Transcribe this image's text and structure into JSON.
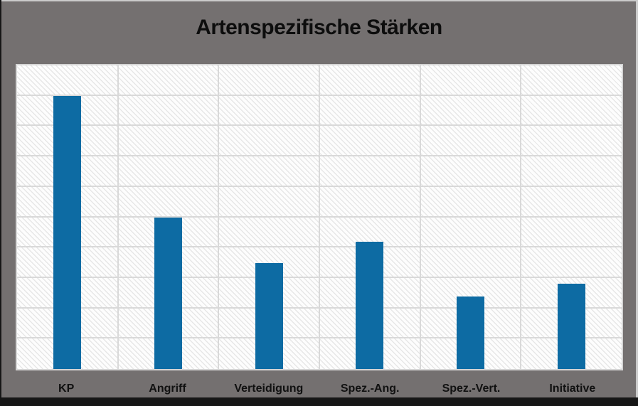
{
  "title": "Artenspezifische Stärken",
  "chart_data": {
    "type": "bar",
    "title": "Artenspezifische Stärken",
    "categories": [
      "KP",
      "Angriff",
      "Verteidigung",
      "Spez.-Ang.",
      "Spez.-Vert.",
      "Initiative"
    ],
    "values": [
      90,
      50,
      35,
      42,
      24,
      28
    ],
    "ylim": [
      0,
      100
    ],
    "gridline_step": 10,
    "grid": "both",
    "legend_position": "none",
    "xlabel": "",
    "ylabel": "",
    "bar_color": "#0d6ba3",
    "gridline_color": "#d9d9d9",
    "plot_background": "white-diagonal-hatch"
  },
  "colors": {
    "window_background": "#747070",
    "frame_light_edge": "#cbcbcb",
    "frame_dark_edge": "#161616",
    "title_text": "#0d0d0d",
    "axis_label_text": "#111111"
  }
}
